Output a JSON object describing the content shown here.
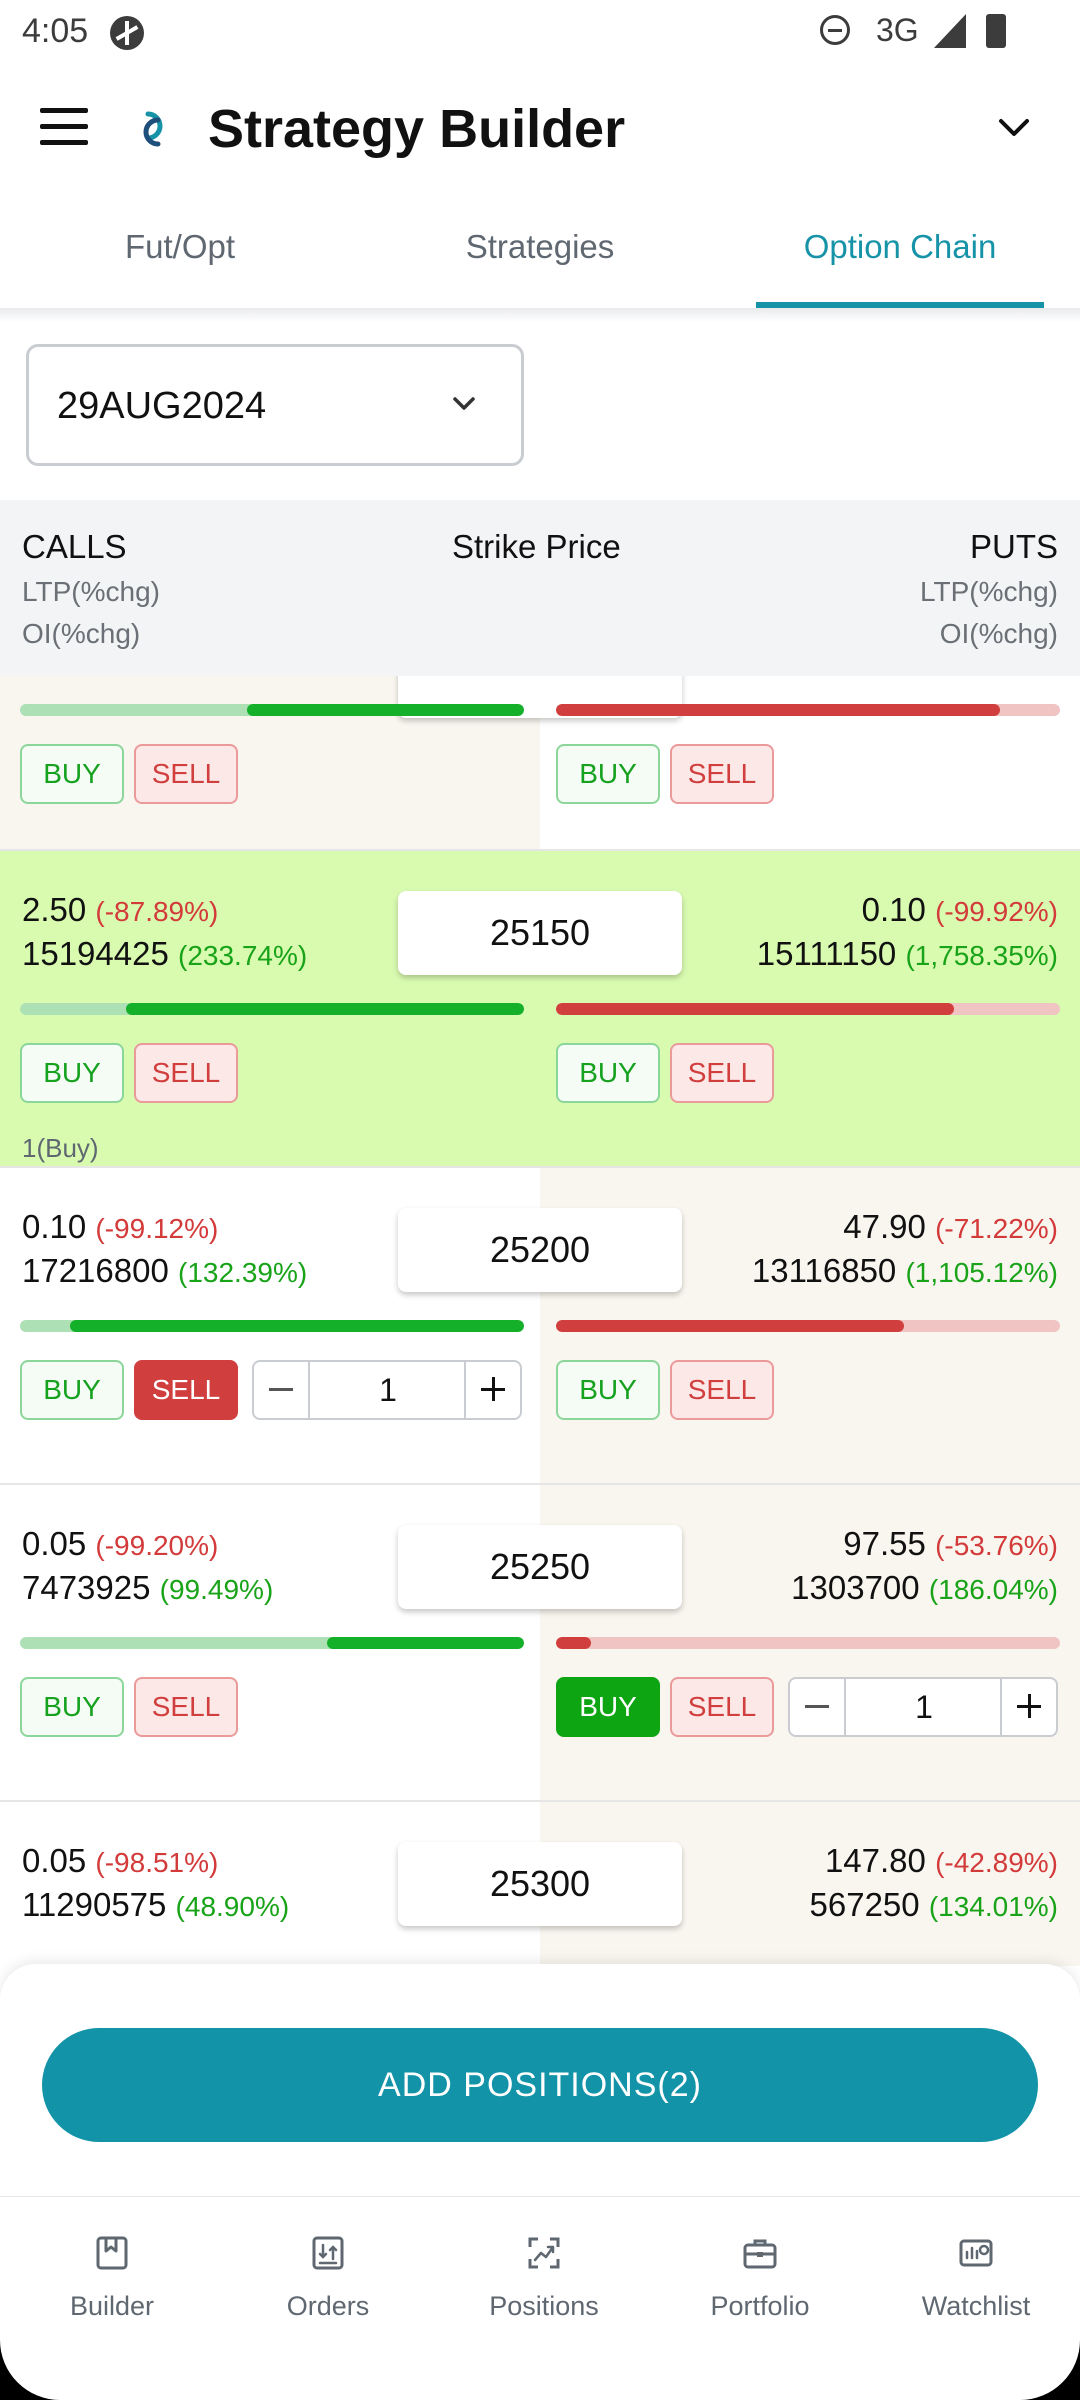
{
  "status_bar": {
    "time": "4:05",
    "network": "3G"
  },
  "header": {
    "title": "Strategy Builder"
  },
  "tabs": [
    {
      "label": "Fut/Opt"
    },
    {
      "label": "Strategies"
    },
    {
      "label": "Option Chain",
      "active": true
    }
  ],
  "expiry": {
    "selected": "29AUG2024"
  },
  "chain_header": {
    "calls": "CALLS",
    "strike": "Strike Price",
    "puts": "PUTS",
    "ltp": "LTP(%chg)",
    "oi": "OI(%chg)"
  },
  "buttons": {
    "buy": "BUY",
    "sell": "SELL"
  },
  "rows": [
    {
      "call_bar_fill": 0.55,
      "put_bar_fill": 0.88
    },
    {
      "strike": "25150",
      "call_ltp": "2.50",
      "call_ltp_chg": "(-87.89%)",
      "call_oi": "15194425",
      "call_oi_chg": "(233.74%)",
      "put_ltp": "0.10",
      "put_ltp_chg": "(-99.92%)",
      "put_oi": "15111150",
      "put_oi_chg": "(1,758.35%)",
      "call_bar_fill": 0.79,
      "put_bar_fill": 0.79,
      "note": "1(Buy)"
    },
    {
      "strike": "25200",
      "call_ltp": "0.10",
      "call_ltp_chg": "(-99.12%)",
      "call_oi": "17216800",
      "call_oi_chg": "(132.39%)",
      "put_ltp": "47.90",
      "put_ltp_chg": "(-71.22%)",
      "put_oi": "13116850",
      "put_oi_chg": "(1,105.12%)",
      "call_bar_fill": 0.9,
      "put_bar_fill": 0.69,
      "call_qty": "1"
    },
    {
      "strike": "25250",
      "call_ltp": "0.05",
      "call_ltp_chg": "(-99.20%)",
      "call_oi": "7473925",
      "call_oi_chg": "(99.49%)",
      "put_ltp": "97.55",
      "put_ltp_chg": "(-53.76%)",
      "put_oi": "1303700",
      "put_oi_chg": "(186.04%)",
      "call_bar_fill": 0.39,
      "put_bar_fill": 0.07,
      "put_qty": "1"
    },
    {
      "strike": "25300",
      "call_ltp": "0.05",
      "call_ltp_chg": "(-98.51%)",
      "call_oi": "11290575",
      "call_oi_chg": "(48.90%)",
      "put_ltp": "147.80",
      "put_ltp_chg": "(-42.89%)",
      "put_oi": "567250",
      "put_oi_chg": "(134.01%)"
    }
  ],
  "add_positions": {
    "label": "ADD POSITIONS(2)"
  },
  "bottom_nav": [
    {
      "label": "Builder",
      "icon": "bookmark-icon"
    },
    {
      "label": "Orders",
      "icon": "orders-icon"
    },
    {
      "label": "Positions",
      "icon": "trend-icon"
    },
    {
      "label": "Portfolio",
      "icon": "briefcase-icon"
    },
    {
      "label": "Watchlist",
      "icon": "watchlist-icon"
    }
  ],
  "colors": {
    "accent": "#1793a8",
    "buy": "#16a11f",
    "sell": "#d13e3e",
    "atm_row": "#d9fbb0"
  }
}
